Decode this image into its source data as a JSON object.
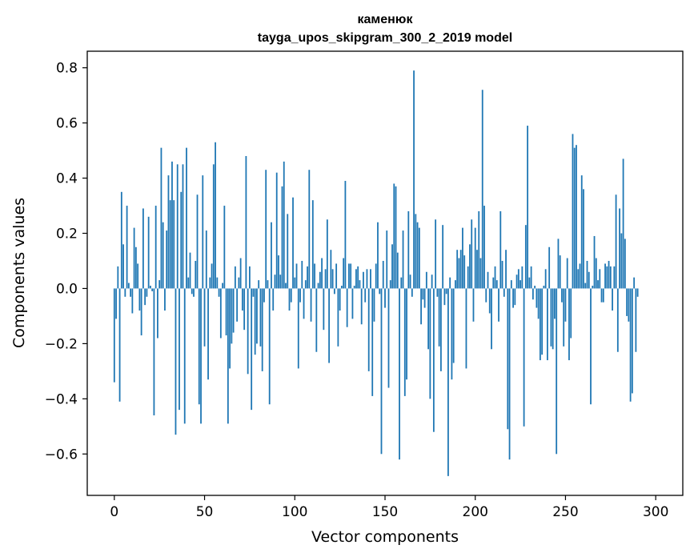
{
  "chart_data": {
    "type": "bar",
    "title_line1": "каменюк",
    "title_line2": "tayga_upos_skipgram_300_2_2019 model",
    "xlabel": "Vector components",
    "ylabel": "Components values",
    "xlim": [
      -15,
      315
    ],
    "ylim": [
      -0.75,
      0.86
    ],
    "xticks": [
      0,
      50,
      100,
      150,
      200,
      250,
      300
    ],
    "yticks": [
      -0.6,
      -0.4,
      -0.2,
      0.0,
      0.2,
      0.4,
      0.6,
      0.8
    ],
    "ytick_labels": [
      "−0.6",
      "−0.4",
      "−0.2",
      "0.0",
      "0.2",
      "0.4",
      "0.6",
      "0.8"
    ],
    "bar_color": "#1f77b4",
    "values": [
      -0.34,
      -0.11,
      0.08,
      -0.41,
      0.35,
      0.16,
      -0.03,
      0.3,
      0.02,
      -0.03,
      -0.09,
      0.22,
      0.15,
      0.09,
      -0.08,
      -0.17,
      0.29,
      -0.06,
      -0.03,
      0.26,
      0.01,
      -0.01,
      -0.46,
      0.3,
      -0.18,
      0.03,
      0.51,
      0.24,
      -0.08,
      0.21,
      0.41,
      0.32,
      0.46,
      0.32,
      -0.53,
      0.45,
      -0.44,
      0.35,
      0.45,
      -0.49,
      0.51,
      0.04,
      0.13,
      -0.02,
      -0.03,
      0.1,
      0.34,
      -0.42,
      -0.49,
      0.41,
      -0.21,
      0.21,
      -0.33,
      0.04,
      0.09,
      0.45,
      0.53,
      0.04,
      -0.03,
      -0.18,
      0.02,
      0.3,
      -0.17,
      -0.49,
      -0.29,
      -0.2,
      -0.16,
      0.08,
      -0.12,
      0.04,
      0.11,
      -0.08,
      -0.15,
      0.48,
      -0.31,
      0.08,
      -0.44,
      -0.03,
      -0.24,
      -0.2,
      0.03,
      -0.21,
      -0.3,
      -0.05,
      0.43,
      0.03,
      -0.42,
      0.24,
      -0.08,
      0.05,
      0.42,
      0.12,
      0.05,
      0.37,
      0.46,
      0.02,
      0.27,
      -0.08,
      -0.05,
      0.33,
      0.04,
      0.09,
      -0.29,
      -0.05,
      0.1,
      -0.11,
      0.03,
      0.08,
      0.43,
      -0.12,
      0.32,
      0.09,
      -0.23,
      0.02,
      0.06,
      0.11,
      -0.15,
      0.07,
      0.25,
      -0.27,
      0.14,
      0.07,
      -0.02,
      0.09,
      -0.21,
      -0.08,
      0.01,
      0.11,
      0.39,
      -0.14,
      0.09,
      0.09,
      -0.11,
      0.01,
      0.07,
      0.08,
      0.03,
      -0.13,
      0.06,
      -0.05,
      0.07,
      -0.3,
      0.07,
      -0.39,
      -0.12,
      0.09,
      0.24,
      -0.02,
      -0.6,
      0.1,
      -0.07,
      0.21,
      -0.36,
      0.03,
      0.16,
      0.38,
      0.37,
      0.13,
      -0.62,
      0.04,
      0.21,
      -0.39,
      -0.33,
      0.28,
      0.05,
      -0.03,
      0.79,
      0.27,
      0.24,
      0.22,
      -0.13,
      -0.04,
      -0.07,
      0.06,
      -0.22,
      -0.4,
      0.05,
      -0.52,
      0.25,
      -0.03,
      -0.21,
      -0.3,
      0.23,
      -0.06,
      -0.02,
      -0.68,
      0.04,
      -0.33,
      -0.27,
      0.03,
      0.14,
      0.11,
      0.14,
      0.22,
      0.12,
      -0.29,
      0.08,
      0.16,
      0.25,
      -0.12,
      0.22,
      0.14,
      0.28,
      0.11,
      0.72,
      0.3,
      -0.05,
      0.06,
      -0.09,
      -0.22,
      0.04,
      0.08,
      0.03,
      -0.12,
      0.28,
      0.1,
      -0.03,
      0.14,
      -0.51,
      -0.62,
      0.03,
      -0.07,
      -0.06,
      0.05,
      0.07,
      0.03,
      0.08,
      -0.5,
      0.23,
      0.59,
      0.04,
      0.08,
      -0.04,
      0.01,
      -0.07,
      -0.11,
      -0.26,
      -0.24,
      0.01,
      0.07,
      -0.26,
      0.15,
      -0.21,
      -0.22,
      -0.11,
      -0.6,
      0.18,
      0.12,
      -0.05,
      -0.21,
      -0.12,
      0.11,
      -0.26,
      -0.18,
      0.56,
      0.51,
      0.52,
      0.07,
      0.09,
      0.41,
      0.36,
      0.02,
      0.1,
      0.06,
      -0.42,
      0.01,
      0.19,
      0.11,
      0.03,
      0.07,
      -0.05,
      -0.05,
      0.09,
      0.08,
      0.1,
      0.08,
      -0.08,
      0.08,
      0.34,
      -0.23,
      0.29,
      0.2,
      0.47,
      0.18,
      -0.1,
      -0.12,
      -0.41,
      -0.38,
      0.04,
      -0.23,
      -0.03
    ]
  }
}
